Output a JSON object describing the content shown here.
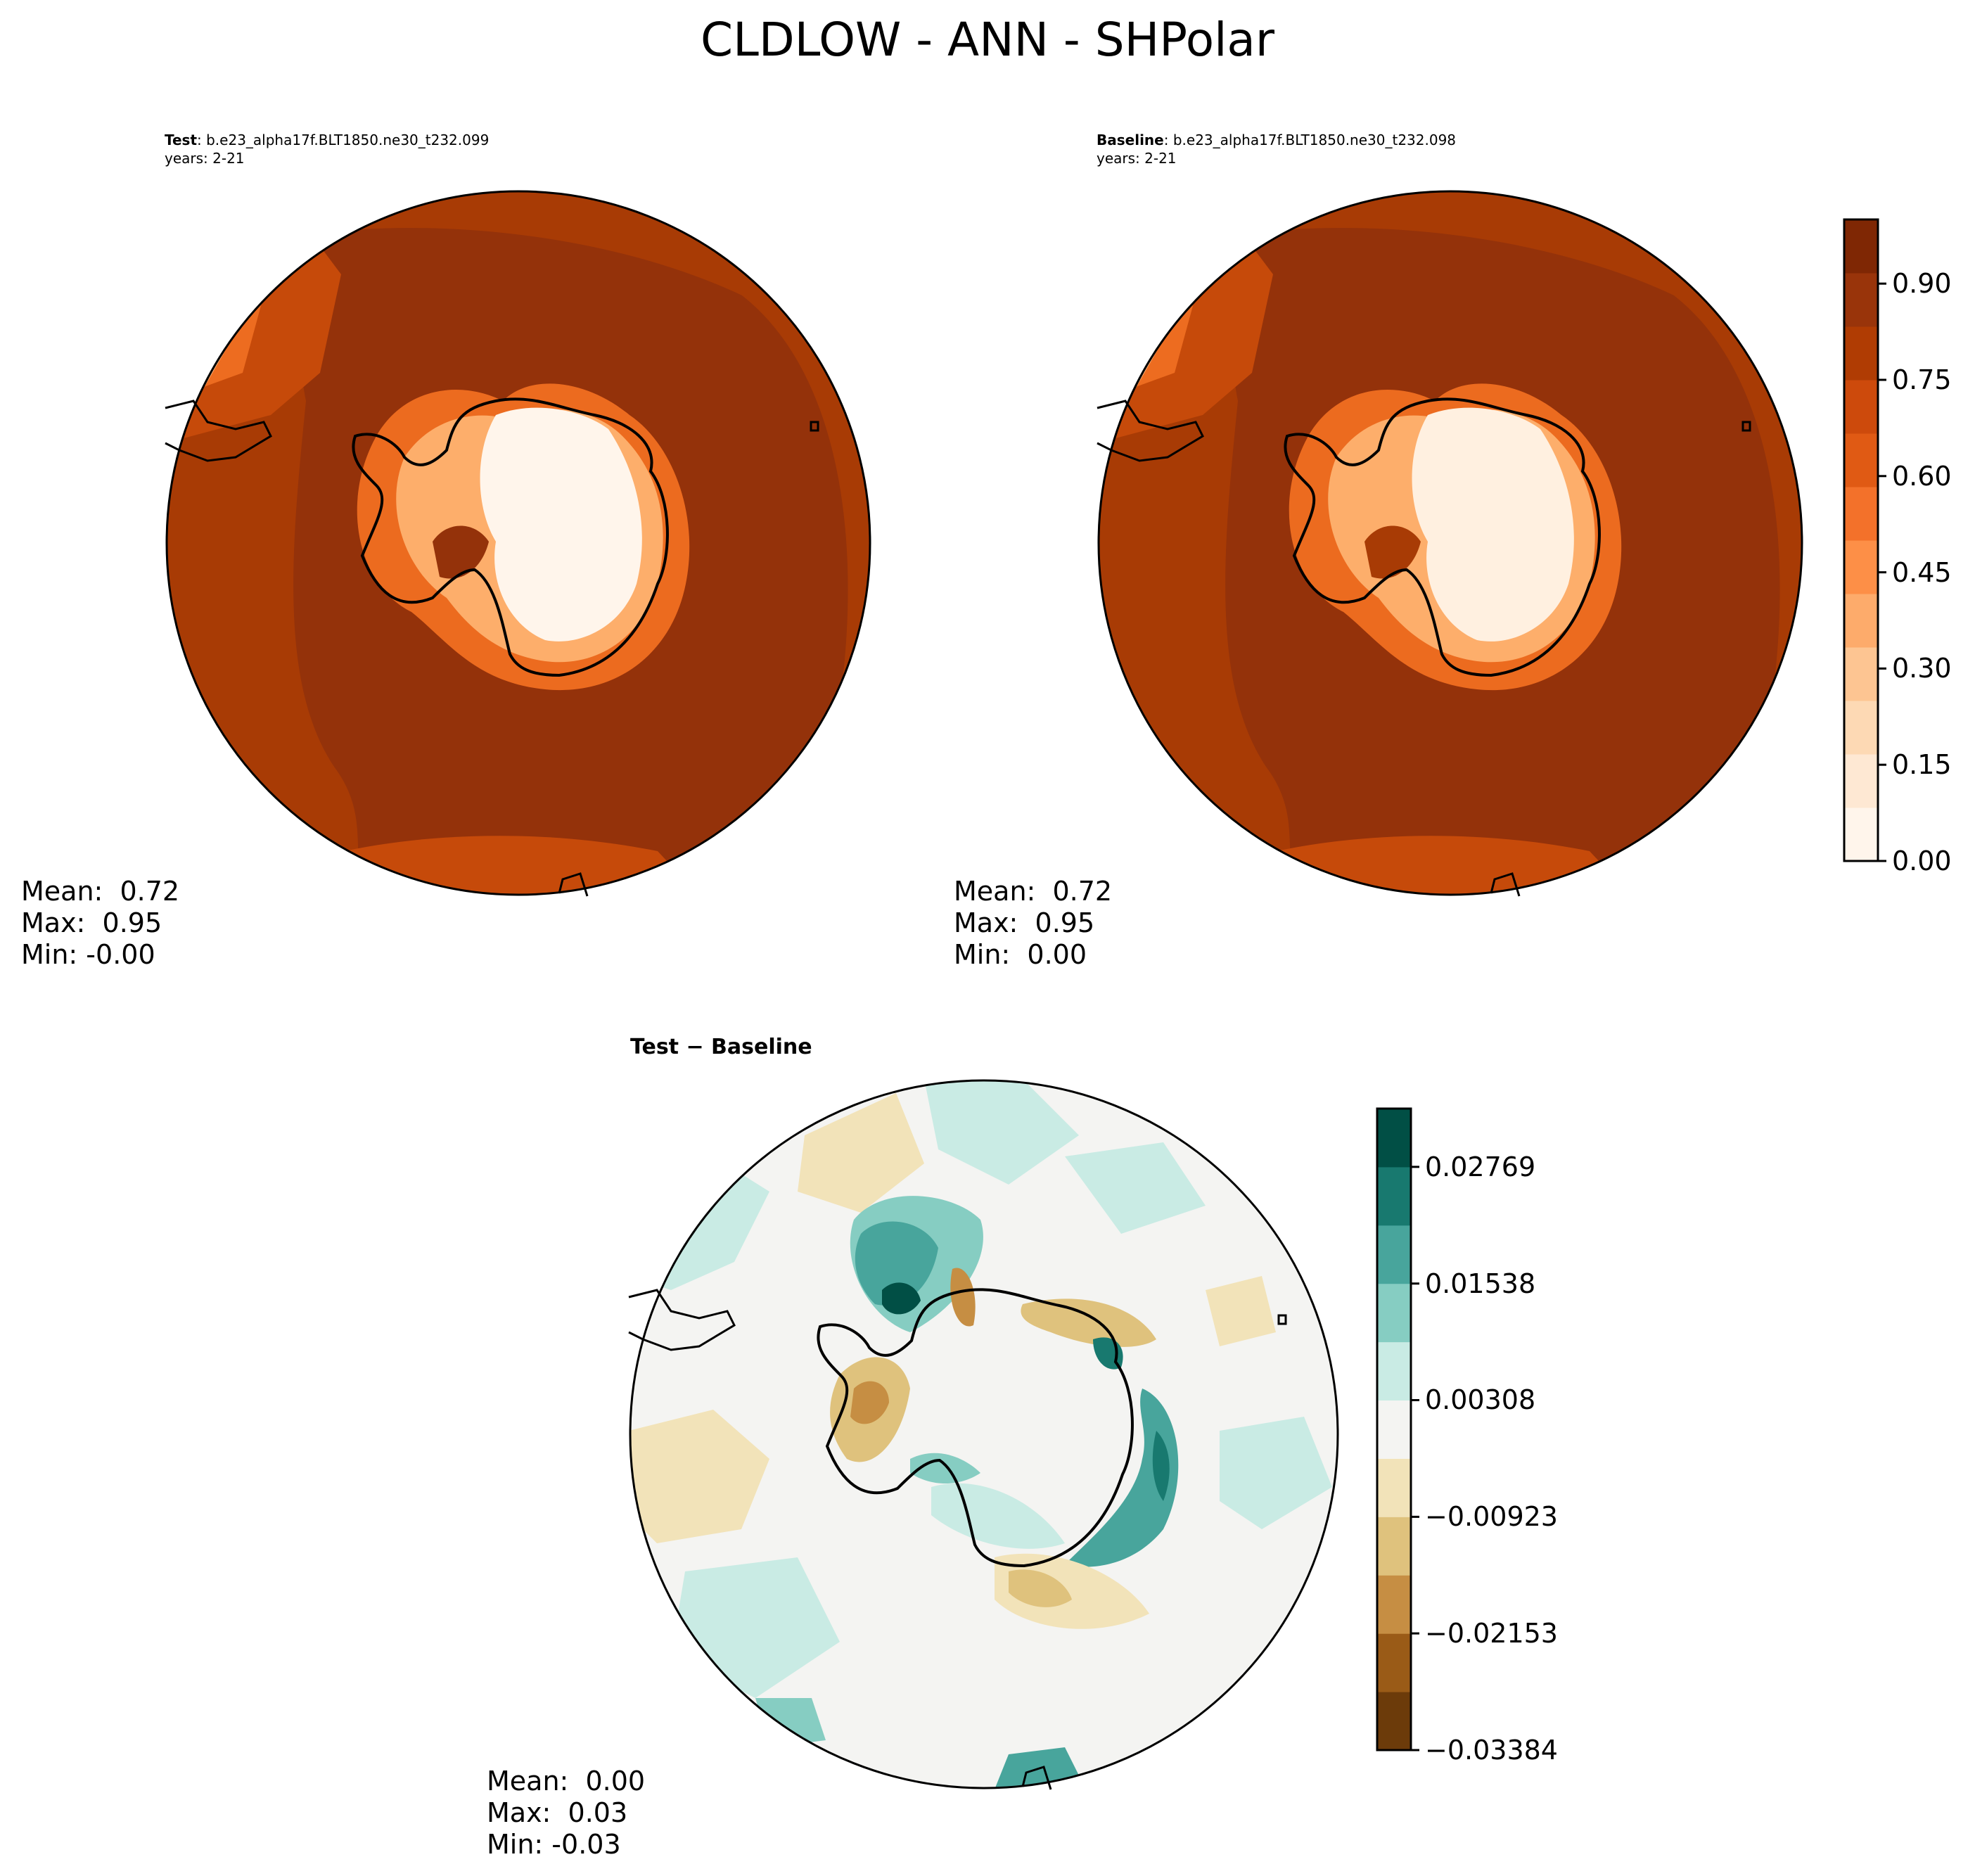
{
  "figure": {
    "title": "CLDLOW - ANN - SHPolar"
  },
  "panels": {
    "test": {
      "label_bold": "Test",
      "label_rest": ": b.e23_alpha17f.BLT1850.ne30_t232.099",
      "years": "years: 2-21",
      "stats": {
        "mean": "Mean:  0.72",
        "max": "Max:  0.95",
        "min": "Min: -0.00"
      }
    },
    "baseline": {
      "label_bold": "Baseline",
      "label_rest": ": b.e23_alpha17f.BLT1850.ne30_t232.098",
      "years": "years: 2-21",
      "stats": {
        "mean": "Mean:  0.72",
        "max": "Max:  0.95",
        "min": "Min:  0.00"
      }
    },
    "diff": {
      "label": "Test − Baseline",
      "stats": {
        "mean": "Mean:  0.00",
        "max": "Max:  0.03",
        "min": "Min: -0.03"
      }
    }
  },
  "chart_data": [
    {
      "type": "heatmap",
      "title": "Test",
      "projection": "south polar stereographic",
      "colormap": "Oranges",
      "colorbar": {
        "range": [
          0.0,
          1.0
        ],
        "ticks": [
          "0.00",
          "0.15",
          "0.30",
          "0.45",
          "0.60",
          "0.75",
          "0.90"
        ],
        "levels": 20,
        "colors": [
          "#fff5eb",
          "#fee8d3",
          "#fdd9b4",
          "#fdc592",
          "#fdab6b",
          "#fd8f47",
          "#f3712a",
          "#e05a14",
          "#cd4a0c",
          "#b03c03",
          "#99340a",
          "#7f2704"
        ]
      },
      "mean": 0.72,
      "max": 0.95,
      "min": -0.0
    },
    {
      "type": "heatmap",
      "title": "Baseline",
      "projection": "south polar stereographic",
      "colormap": "Oranges",
      "mean": 0.72,
      "max": 0.95,
      "min": 0.0
    },
    {
      "type": "heatmap",
      "title": "Test − Baseline",
      "projection": "south polar stereographic",
      "colormap": "BrBG",
      "colorbar": {
        "range": [
          -0.03384,
          0.03384
        ],
        "ticks": [
          "−0.03384",
          "−0.02153",
          "−0.00923",
          "0.00308",
          "0.01538",
          "0.02769"
        ],
        "colors": [
          "#6c3b0a",
          "#9a5b17",
          "#c68e43",
          "#dfc27d",
          "#f2e3b9",
          "#f4f4f2",
          "#c9ebe4",
          "#86cdc2",
          "#48a59c",
          "#18796f",
          "#014f45"
        ]
      },
      "mean": 0.0,
      "max": 0.03,
      "min": -0.03
    }
  ]
}
